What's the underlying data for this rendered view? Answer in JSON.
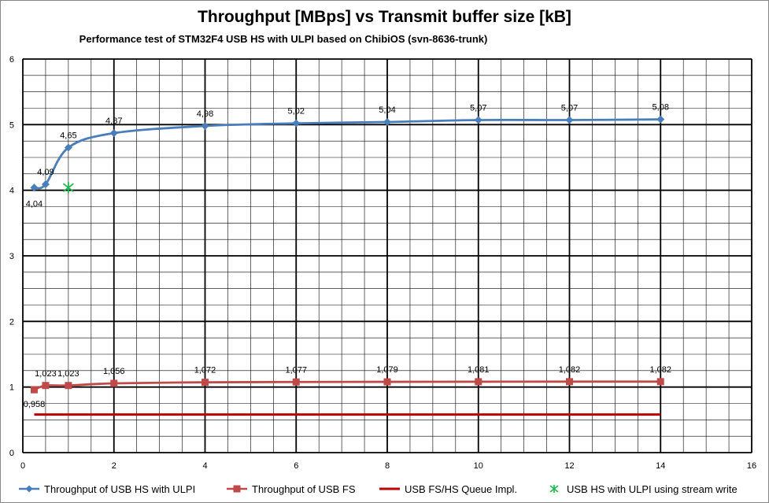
{
  "chart_data": {
    "type": "scatter",
    "title": "Throughput [MBps] vs Transmit buffer size [kB]",
    "subtitle": "Performance test of STM32F4 USB HS with ULPI based on ChibiOS (svn-8636-trunk)",
    "xlabel": "",
    "ylabel": "",
    "xlim": [
      0,
      16
    ],
    "ylim": [
      0,
      6
    ],
    "x_ticks": [
      "0",
      "2",
      "4",
      "6",
      "8",
      "10",
      "12",
      "14",
      "16"
    ],
    "y_ticks": [
      "0",
      "1",
      "2",
      "3",
      "4",
      "5",
      "6"
    ],
    "grid": true,
    "legend_position": "bottom",
    "series": [
      {
        "name": "Throughput of USB HS with ULPI",
        "color": "#4a7ebb",
        "marker": "diamond",
        "smooth": true,
        "x": [
          0.25,
          0.5,
          1,
          2,
          4,
          6,
          8,
          10,
          12,
          14
        ],
        "y": [
          4.04,
          4.09,
          4.65,
          4.87,
          4.98,
          5.02,
          5.04,
          5.07,
          5.07,
          5.08
        ],
        "labels": [
          "4,04",
          "4,09",
          "4,65",
          "4,87",
          "4,98",
          "5,02",
          "5,04",
          "5,07",
          "5,07",
          "5,08"
        ]
      },
      {
        "name": "Throughput of USB FS",
        "color": "#be4b48",
        "marker": "square",
        "smooth": true,
        "x": [
          0.25,
          0.5,
          1,
          2,
          4,
          6,
          8,
          10,
          12,
          14
        ],
        "y": [
          0.958,
          1.023,
          1.023,
          1.056,
          1.072,
          1.077,
          1.079,
          1.081,
          1.082,
          1.082
        ],
        "labels": [
          "0,958",
          "1,023",
          "1,023",
          "1,056",
          "1,072",
          "1,077",
          "1,079",
          "1,081",
          "1,082",
          "1,082"
        ]
      },
      {
        "name": "USB FS/HS Queue Impl.",
        "color": "#c00000",
        "marker": "none",
        "x": [
          0.25,
          14
        ],
        "y": [
          0.58,
          0.58
        ]
      },
      {
        "name": "USB HS with ULPI using stream write",
        "color": "#1fb84f",
        "marker": "star",
        "x": [
          1
        ],
        "y": [
          4.04
        ]
      }
    ]
  }
}
